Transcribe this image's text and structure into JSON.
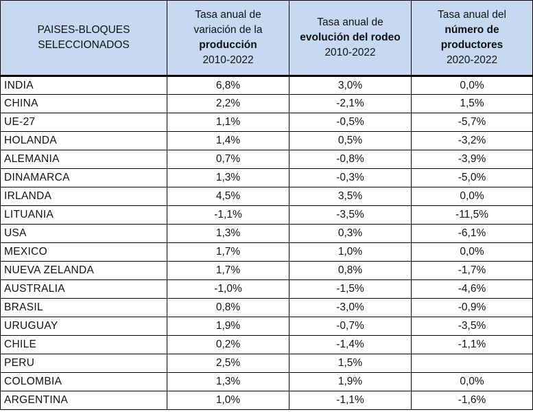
{
  "table": {
    "headers": {
      "col1": {
        "line1": "PAISES-BLOQUES",
        "line2": "SELECCIONADOS"
      },
      "col2": {
        "line1": "Tasa anual de",
        "line2": "variación de la",
        "line3": "producción",
        "line4": "2010-2022"
      },
      "col3": {
        "line1": "Tasa anual de",
        "line2": "evolución del rodeo",
        "line3": "2010-2022"
      },
      "col4": {
        "line1": "Tasa anual del",
        "line2": "número de",
        "line3": "productores",
        "line4": "2020-2022"
      }
    },
    "rows": [
      {
        "country": "INDIA",
        "produccion": "6,8%",
        "rodeo": "3,0%",
        "productores": "0,0%"
      },
      {
        "country": "CHINA",
        "produccion": "2,2%",
        "rodeo": "-2,1%",
        "productores": "1,5%"
      },
      {
        "country": "UE-27",
        "produccion": "1,1%",
        "rodeo": "-0,5%",
        "productores": "-5,7%"
      },
      {
        "country": "HOLANDA",
        "produccion": "1,4%",
        "rodeo": "0,5%",
        "productores": "-3,2%"
      },
      {
        "country": "ALEMANIA",
        "produccion": "0,7%",
        "rodeo": "-0,8%",
        "productores": "-3,9%"
      },
      {
        "country": "DINAMARCA",
        "produccion": "1,3%",
        "rodeo": "-0,3%",
        "productores": "-5,0%"
      },
      {
        "country": "IRLANDA",
        "produccion": "4,5%",
        "rodeo": "3,5%",
        "productores": "0,0%"
      },
      {
        "country": "LITUANIA",
        "produccion": "-1,1%",
        "rodeo": "-3,5%",
        "productores": "-11,5%"
      },
      {
        "country": "USA",
        "produccion": "1,3%",
        "rodeo": "0,3%",
        "productores": "-6,1%"
      },
      {
        "country": "MEXICO",
        "produccion": "1,7%",
        "rodeo": "1,0%",
        "productores": "0,0%"
      },
      {
        "country": "NUEVA ZELANDA",
        "produccion": "1,7%",
        "rodeo": "0,8%",
        "productores": "-1,7%"
      },
      {
        "country": "AUSTRALIA",
        "produccion": "-1,0%",
        "rodeo": "-1,5%",
        "productores": "-4,6%"
      },
      {
        "country": "BRASIL",
        "produccion": "0,8%",
        "rodeo": "-3,0%",
        "productores": "-0,9%"
      },
      {
        "country": "URUGUAY",
        "produccion": "1,9%",
        "rodeo": "-0,7%",
        "productores": "-3,5%"
      },
      {
        "country": "CHILE",
        "produccion": "0,2%",
        "rodeo": "-1,4%",
        "productores": "-1,1%"
      },
      {
        "country": "PERU",
        "produccion": "2,5%",
        "rodeo": "1,5%",
        "productores": ""
      },
      {
        "country": "COLOMBIA",
        "produccion": "1,3%",
        "rodeo": "1,9%",
        "productores": "0,0%"
      },
      {
        "country": "ARGENTINA",
        "produccion": "1,0%",
        "rodeo": "-1,1%",
        "productores": "-1,6%"
      }
    ]
  }
}
